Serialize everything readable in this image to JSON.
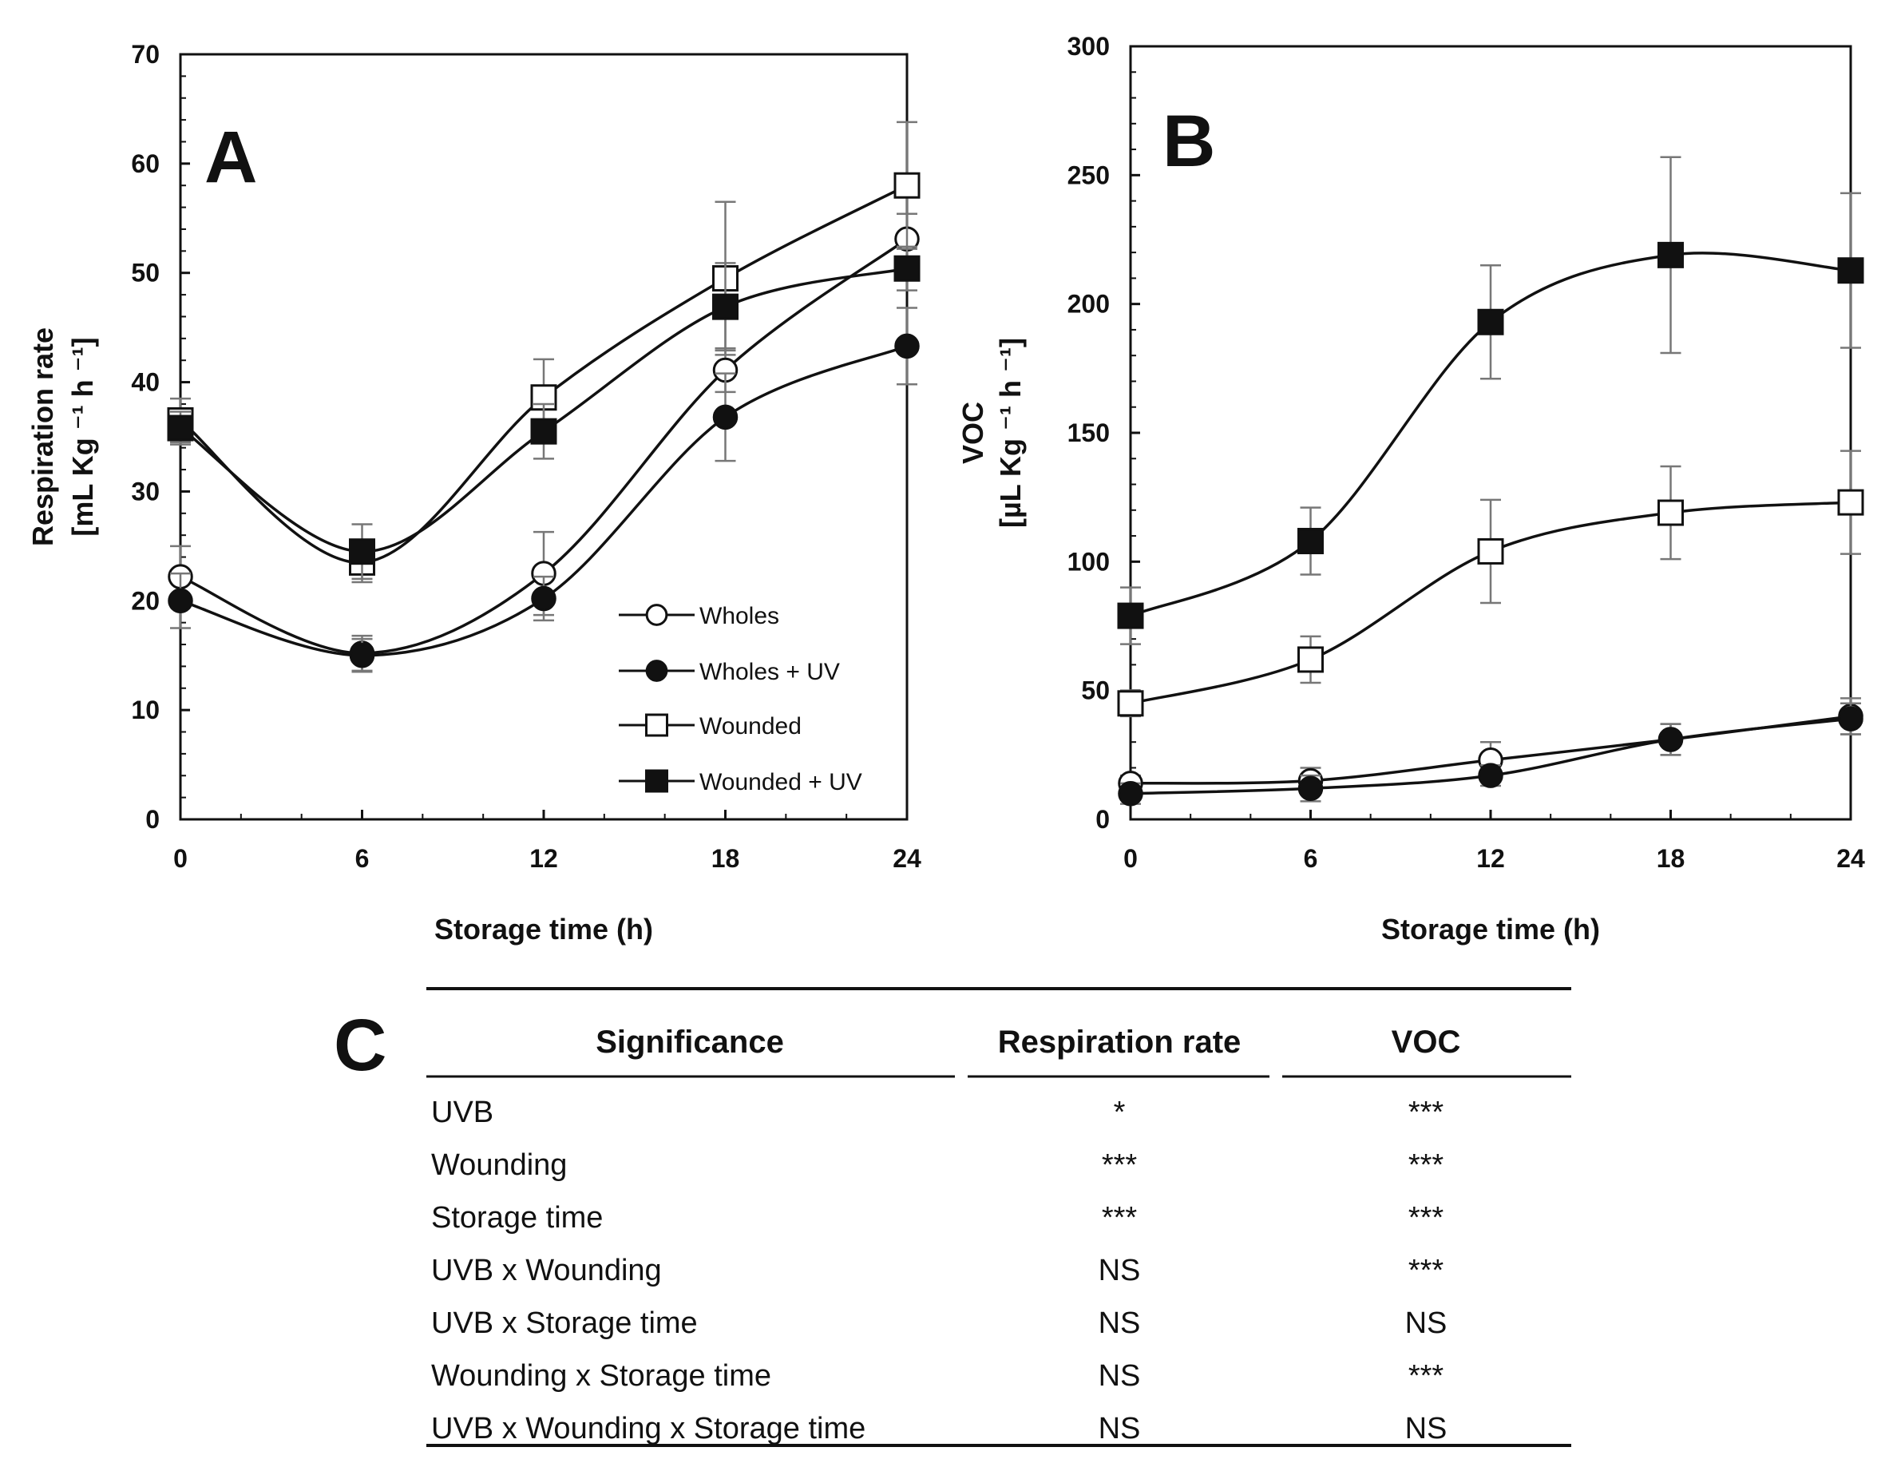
{
  "chart_data": [
    {
      "panel_label": "A",
      "type": "line",
      "xlabel": "Storage time (h)",
      "ylabel_line1": "Respiration rate",
      "ylabel_line2": "[mL Kg ⁻¹ h ⁻¹]",
      "x": [
        0,
        6,
        12,
        18,
        24
      ],
      "xlim": [
        0,
        24
      ],
      "ylim": [
        0,
        70
      ],
      "xticks": [
        0,
        6,
        12,
        18,
        24
      ],
      "yticks": [
        0,
        10,
        20,
        30,
        40,
        50,
        60,
        70
      ],
      "legend_position": "lower-right",
      "series": [
        {
          "name": "Wholes",
          "marker": "open-circle",
          "values": [
            22.2,
            15.2,
            22.5,
            41.1,
            53.1
          ],
          "errors": [
            2.8,
            1.6,
            3.8,
            2.0,
            2.3
          ]
        },
        {
          "name": "Wholes + UV",
          "marker": "filled-circle",
          "values": [
            20.0,
            15.0,
            20.2,
            36.8,
            43.3
          ],
          "errors": [
            2.5,
            1.5,
            2.0,
            4.0,
            3.5
          ]
        },
        {
          "name": "Wounded",
          "marker": "open-square",
          "values": [
            36.5,
            23.5,
            38.6,
            49.5,
            58.0
          ],
          "errors": [
            2.0,
            1.8,
            3.5,
            7.0,
            5.8
          ]
        },
        {
          "name": "Wounded + UV",
          "marker": "filled-square",
          "values": [
            35.8,
            24.5,
            35.5,
            46.9,
            50.4
          ],
          "errors": [
            1.5,
            2.5,
            2.5,
            4.0,
            2.0
          ]
        }
      ]
    },
    {
      "panel_label": "B",
      "type": "line",
      "xlabel": "Storage time (h)",
      "ylabel_line1": "VOC",
      "ylabel_line2": "[µL Kg ⁻¹ h ⁻¹]",
      "x": [
        0,
        6,
        12,
        18,
        24
      ],
      "xlim": [
        0,
        24
      ],
      "ylim": [
        0,
        300
      ],
      "xticks": [
        0,
        6,
        12,
        18,
        24
      ],
      "yticks": [
        0,
        50,
        100,
        150,
        200,
        250,
        300
      ],
      "series": [
        {
          "name": "Wholes",
          "marker": "open-circle",
          "values": [
            14,
            15,
            23,
            31,
            40
          ],
          "errors": [
            3,
            5,
            7,
            6,
            7
          ]
        },
        {
          "name": "Wholes + UV",
          "marker": "filled-circle",
          "values": [
            10,
            12,
            17,
            31,
            39
          ],
          "errors": [
            4,
            5,
            4,
            6,
            6
          ]
        },
        {
          "name": "Wounded",
          "marker": "open-square",
          "values": [
            45,
            62,
            104,
            119,
            123
          ],
          "errors": [
            5,
            9,
            20,
            18,
            20
          ]
        },
        {
          "name": "Wounded + UV",
          "marker": "filled-square",
          "values": [
            79,
            108,
            193,
            219,
            213
          ],
          "errors": [
            11,
            13,
            22,
            38,
            30
          ]
        }
      ]
    },
    {
      "panel_label": "C",
      "type": "table",
      "columns": [
        "Significance",
        "Respiration rate",
        "VOC"
      ],
      "rows": [
        [
          "UVB",
          "*",
          "***"
        ],
        [
          "Wounding",
          "***",
          "***"
        ],
        [
          "Storage time",
          "***",
          "***"
        ],
        [
          "UVB x Wounding",
          "NS",
          "***"
        ],
        [
          "UVB x Storage time",
          "NS",
          "NS"
        ],
        [
          "Wounding x Storage time",
          "NS",
          "***"
        ],
        [
          "UVB x Wounding x Storage time",
          "NS",
          "NS"
        ]
      ]
    }
  ]
}
